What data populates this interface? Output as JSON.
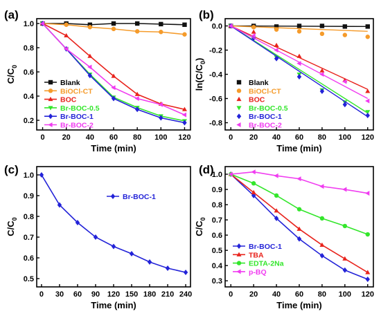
{
  "colors": {
    "black": "#111111",
    "orange": "#f59b2b",
    "red": "#e8231c",
    "green": "#33e62b",
    "blue": "#2323d8",
    "magenta": "#f03cf0"
  },
  "chart_data": [
    {
      "panel_label": "(a)",
      "type": "line",
      "xlabel": "Time (min)",
      "ylabel": "C/C",
      "ylabel_sub": "0",
      "xlim": [
        -5,
        125
      ],
      "ylim": [
        0.12,
        1.04
      ],
      "xticks": [
        0,
        20,
        40,
        60,
        80,
        100,
        120
      ],
      "yticks": [
        0.2,
        0.4,
        0.6,
        0.8,
        1.0
      ],
      "ytick_labels": [
        "0.2",
        "0.4",
        "0.6",
        "0.8",
        "1.0"
      ],
      "legend_position": "bottom-left",
      "series": [
        {
          "name": "Blank",
          "color": "#111111",
          "marker": "square",
          "x": [
            0,
            20,
            40,
            60,
            80,
            100,
            120
          ],
          "y": [
            1.0,
            1.0,
            0.99,
            1.0,
            1.0,
            0.995,
            0.99
          ]
        },
        {
          "name": "BiOCl-CT",
          "color": "#f59b2b",
          "marker": "circle",
          "x": [
            0,
            20,
            40,
            60,
            80,
            100,
            120
          ],
          "y": [
            1.0,
            0.99,
            0.97,
            0.955,
            0.935,
            0.93,
            0.91
          ]
        },
        {
          "name": "BOC",
          "color": "#e8231c",
          "marker": "triangle-up",
          "x": [
            0,
            20,
            40,
            60,
            80,
            100,
            120
          ],
          "y": [
            1.0,
            0.9,
            0.73,
            0.565,
            0.415,
            0.335,
            0.29
          ]
        },
        {
          "name": "Br-BOC-0.5",
          "color": "#33e62b",
          "marker": "triangle-down",
          "x": [
            0,
            20,
            40,
            60,
            80,
            100,
            120
          ],
          "y": [
            1.0,
            0.79,
            0.58,
            0.39,
            0.305,
            0.235,
            0.195
          ]
        },
        {
          "name": "Br-BOC-1",
          "color": "#2323d8",
          "marker": "diamond",
          "x": [
            0,
            20,
            40,
            60,
            80,
            100,
            120
          ],
          "y": [
            1.0,
            0.79,
            0.57,
            0.38,
            0.29,
            0.22,
            0.18
          ]
        },
        {
          "name": "Br-BOC-2",
          "color": "#f03cf0",
          "marker": "triangle-left",
          "x": [
            0,
            20,
            40,
            60,
            80,
            100,
            120
          ],
          "y": [
            1.0,
            0.79,
            0.64,
            0.47,
            0.38,
            0.33,
            0.245
          ]
        }
      ]
    },
    {
      "panel_label": "(b)",
      "type": "scatter",
      "xlabel": "Time (min)",
      "ylabel": "ln(C/C",
      "ylabel_sub": "0",
      "ylabel_tail": ")",
      "xlim": [
        -5,
        125
      ],
      "ylim": [
        -0.86,
        0.06
      ],
      "xticks": [
        0,
        20,
        40,
        60,
        80,
        100,
        120
      ],
      "yticks": [
        0.0,
        -0.2,
        -0.4,
        -0.6,
        -0.8
      ],
      "ytick_labels": [
        "0.0",
        "-0.2",
        "-0.4",
        "-0.6",
        "-0.8"
      ],
      "legend_position": "bottom-left",
      "series": [
        {
          "name": "Blank",
          "color": "#111111",
          "marker": "square",
          "x": [
            0,
            20,
            40,
            60,
            80,
            100,
            120
          ],
          "y": [
            0.0,
            0.0,
            -0.005,
            0.0,
            0.0,
            -0.005,
            -0.005
          ],
          "fit_slope": -4e-05
        },
        {
          "name": "BiOCl-CT",
          "color": "#f59b2b",
          "marker": "circle",
          "x": [
            0,
            20,
            40,
            60,
            80,
            100,
            120
          ],
          "y": [
            0.0,
            -0.01,
            -0.03,
            -0.045,
            -0.065,
            -0.075,
            -0.09
          ],
          "fit_slope": -0.00037
        },
        {
          "name": "BOC",
          "color": "#e8231c",
          "marker": "triangle-up",
          "x": [
            0,
            20,
            40,
            60,
            80,
            100,
            120
          ],
          "y": [
            0.0,
            -0.05,
            -0.16,
            -0.25,
            -0.37,
            -0.45,
            -0.54
          ],
          "fit_slope": -0.00437
        },
        {
          "name": "Br-BOC-0.5",
          "color": "#33e62b",
          "marker": "triangle-down",
          "x": [
            0,
            20,
            40,
            60,
            80,
            100,
            120
          ],
          "y": [
            0.0,
            -0.1,
            -0.26,
            -0.4,
            -0.53,
            -0.63,
            -0.71
          ],
          "fit_slope": -0.006
        },
        {
          "name": "Br-BOC-1",
          "color": "#2323d8",
          "marker": "diamond",
          "x": [
            0,
            20,
            40,
            60,
            80,
            100,
            120
          ],
          "y": [
            0.0,
            -0.1,
            -0.27,
            -0.42,
            -0.54,
            -0.65,
            -0.74
          ],
          "fit_slope": -0.00625
        },
        {
          "name": "Br-BOC-2",
          "color": "#f03cf0",
          "marker": "triangle-left",
          "x": [
            0,
            20,
            40,
            60,
            80,
            100,
            120
          ],
          "y": [
            0.0,
            -0.08,
            -0.2,
            -0.31,
            -0.4,
            -0.46,
            -0.62
          ],
          "fit_slope": -0.005
        }
      ]
    },
    {
      "panel_label": "(c)",
      "type": "line",
      "xlabel": "Time (min)",
      "ylabel": "C/C",
      "ylabel_sub": "0",
      "xlim": [
        -8,
        248
      ],
      "ylim": [
        0.46,
        1.04
      ],
      "xticks": [
        0,
        30,
        60,
        90,
        120,
        150,
        180,
        210,
        240
      ],
      "yticks": [
        0.5,
        0.6,
        0.7,
        0.8,
        0.9,
        1.0
      ],
      "ytick_labels": [
        "0.5",
        "0.6",
        "0.7",
        "0.8",
        "0.9",
        "1.0"
      ],
      "legend_position": "top-right",
      "series": [
        {
          "name": "Br-BOC-1",
          "color": "#2323d8",
          "marker": "diamond",
          "x": [
            0,
            30,
            60,
            90,
            120,
            150,
            180,
            210,
            240
          ],
          "y": [
            1.0,
            0.855,
            0.77,
            0.7,
            0.655,
            0.62,
            0.58,
            0.55,
            0.53
          ]
        }
      ]
    },
    {
      "panel_label": "(d)",
      "type": "line",
      "xlabel": "Time (min)",
      "ylabel": "C/C",
      "ylabel_sub": "0",
      "xlim": [
        -5,
        125
      ],
      "ylim": [
        0.26,
        1.05
      ],
      "xticks": [
        0,
        20,
        40,
        60,
        80,
        100,
        120
      ],
      "yticks": [
        0.3,
        0.4,
        0.5,
        0.6,
        0.7,
        0.8,
        0.9,
        1.0
      ],
      "ytick_labels": [
        "0.3",
        "0.4",
        "0.5",
        "0.6",
        "0.7",
        "0.8",
        "0.9",
        "1.0"
      ],
      "legend_position": "bottom-left",
      "series": [
        {
          "name": "Br-BOC-1",
          "color": "#2323d8",
          "marker": "diamond",
          "x": [
            0,
            20,
            40,
            60,
            80,
            100,
            120
          ],
          "y": [
            1.0,
            0.86,
            0.71,
            0.575,
            0.465,
            0.37,
            0.31
          ]
        },
        {
          "name": "TBA",
          "color": "#e8231c",
          "marker": "triangle-up",
          "x": [
            0,
            20,
            40,
            60,
            80,
            100,
            120
          ],
          "y": [
            1.0,
            0.88,
            0.76,
            0.64,
            0.535,
            0.445,
            0.355
          ]
        },
        {
          "name": "EDTA-2Na",
          "color": "#33e62b",
          "marker": "circle",
          "x": [
            0,
            20,
            40,
            60,
            80,
            100,
            120
          ],
          "y": [
            1.0,
            0.94,
            0.86,
            0.77,
            0.71,
            0.66,
            0.605
          ]
        },
        {
          "name": "p-BQ",
          "color": "#f03cf0",
          "marker": "triangle-left",
          "x": [
            0,
            20,
            40,
            60,
            80,
            100,
            120
          ],
          "y": [
            1.0,
            1.015,
            0.99,
            0.97,
            0.92,
            0.9,
            0.875
          ]
        }
      ]
    }
  ]
}
